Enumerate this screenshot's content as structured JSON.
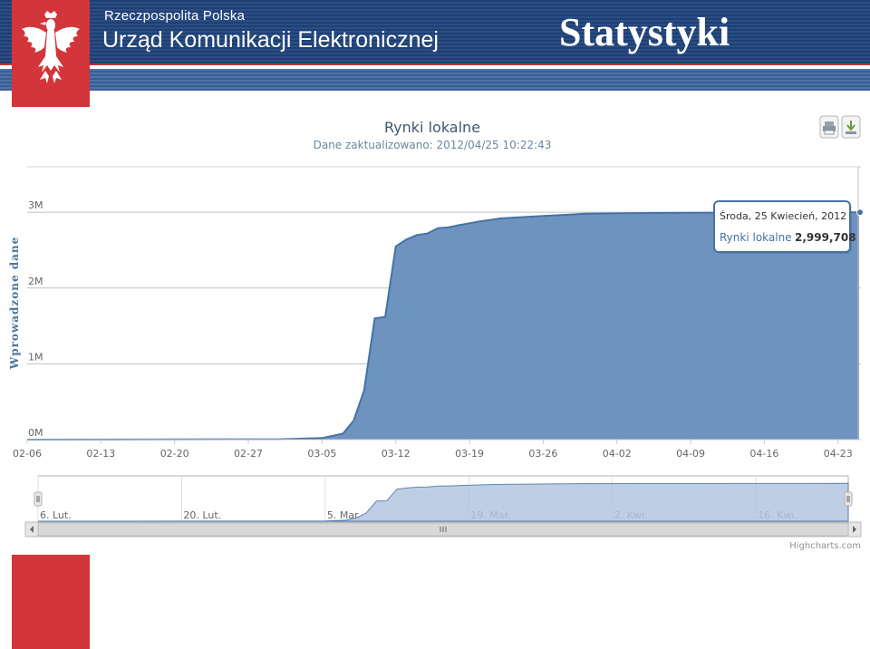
{
  "header": {
    "org_small": "Rzeczpospolita Polska",
    "org_big": "Urząd Komunikacji Elektronicznej",
    "title": "Statystyki",
    "emblem_icon": "white-eagle-emblem-icon"
  },
  "colors": {
    "header_blue": "#1f3f72",
    "accent_red": "#d2353a",
    "series_fill": "#6f93bf",
    "series_line": "#4572a7",
    "navigator_fill": "#b3c6e0"
  },
  "chart": {
    "print_icon": "printer-icon",
    "export_icon": "download-icon",
    "credits": "Highcharts.com",
    "tooltip": {
      "date": "Środa, 25 Kwiecień, 2012",
      "series": "Rynki lokalne",
      "value": "2,999,708"
    }
  },
  "chart_data": {
    "type": "area",
    "title": "Rynki lokalne",
    "subtitle": "Dane zaktualizowano: 2012/04/25 10:22:43",
    "ylabel": "Wprowadzone dane",
    "xlabel": "",
    "ylim": [
      0,
      3600000
    ],
    "y_ticks": [
      0,
      1000000,
      2000000,
      3000000
    ],
    "y_tick_labels": [
      "0M",
      "1M",
      "2M",
      "3M"
    ],
    "xlim": [
      "2012-02-06",
      "2012-04-25"
    ],
    "x_ticks": [
      "2012-02-06",
      "2012-02-13",
      "2012-02-20",
      "2012-02-27",
      "2012-03-05",
      "2012-03-12",
      "2012-03-19",
      "2012-03-26",
      "2012-04-02",
      "2012-04-09",
      "2012-04-16",
      "2012-04-23"
    ],
    "x_tick_labels": [
      "02-06",
      "02-13",
      "02-20",
      "02-27",
      "03-05",
      "03-12",
      "03-19",
      "03-26",
      "04-02",
      "04-09",
      "04-16",
      "04-23"
    ],
    "grid": true,
    "legend": "none",
    "series": [
      {
        "name": "Rynki lokalne",
        "x": [
          "2012-02-06",
          "2012-03-01",
          "2012-03-05",
          "2012-03-07",
          "2012-03-08",
          "2012-03-09",
          "2012-03-10",
          "2012-03-11",
          "2012-03-12",
          "2012-03-13",
          "2012-03-14",
          "2012-03-15",
          "2012-03-16",
          "2012-03-17",
          "2012-03-18",
          "2012-03-20",
          "2012-03-22",
          "2012-03-26",
          "2012-03-30",
          "2012-04-05",
          "2012-04-15",
          "2012-04-25"
        ],
        "y": [
          0,
          5000,
          20000,
          80000,
          250000,
          650000,
          1600000,
          1620000,
          2550000,
          2640000,
          2700000,
          2720000,
          2790000,
          2800000,
          2830000,
          2880000,
          2920000,
          2950000,
          2980000,
          2990000,
          2997000,
          2999708
        ]
      }
    ],
    "navigator": {
      "x_tick_labels": [
        "6. Lut.",
        "20. Lut.",
        "5. Mar.",
        "19. Mar.",
        "2. Kwi.",
        "16. Kwi."
      ]
    }
  }
}
